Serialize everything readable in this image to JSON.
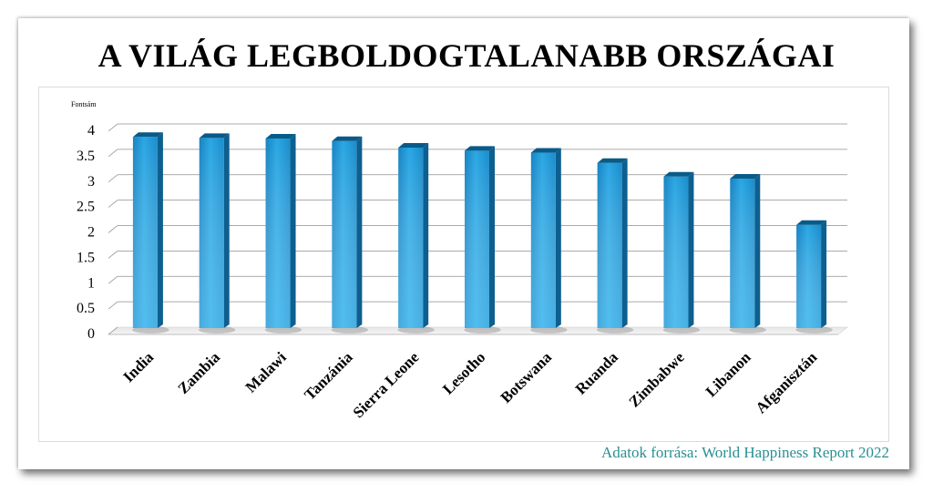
{
  "title": "A VILÁG LEGBOLDOGTALANABB ORSZÁGAI",
  "source": "Adatok forrása: World Happiness Report 2022",
  "colors": {
    "bar_light": "#5ec8f5",
    "bar_mid": "#1e9ad6",
    "bar_dark": "#0b5f8e",
    "grid": "#8a8a8a",
    "source_text": "#2b8f93"
  },
  "chart_data": {
    "type": "bar",
    "title": "A VILÁG LEGBOLDOGTALANABB ORSZÁGAI",
    "ylabel": "Fontsám",
    "xlabel": "",
    "ylim": [
      0,
      4
    ],
    "yticks": [
      "0",
      "0.5",
      "1",
      "1.5",
      "2",
      "2.5",
      "3",
      "3.5",
      "4"
    ],
    "grid": true,
    "categories": [
      "India",
      "Zambia",
      "Malawi",
      "Tanzánia",
      "Sierra Leone",
      "Lesotho",
      "Botswana",
      "Ruanda",
      "Zimbabwe",
      "Libanon",
      "Afganisztán"
    ],
    "values": [
      3.78,
      3.76,
      3.75,
      3.7,
      3.57,
      3.51,
      3.47,
      3.27,
      3.0,
      2.96,
      2.05
    ]
  }
}
